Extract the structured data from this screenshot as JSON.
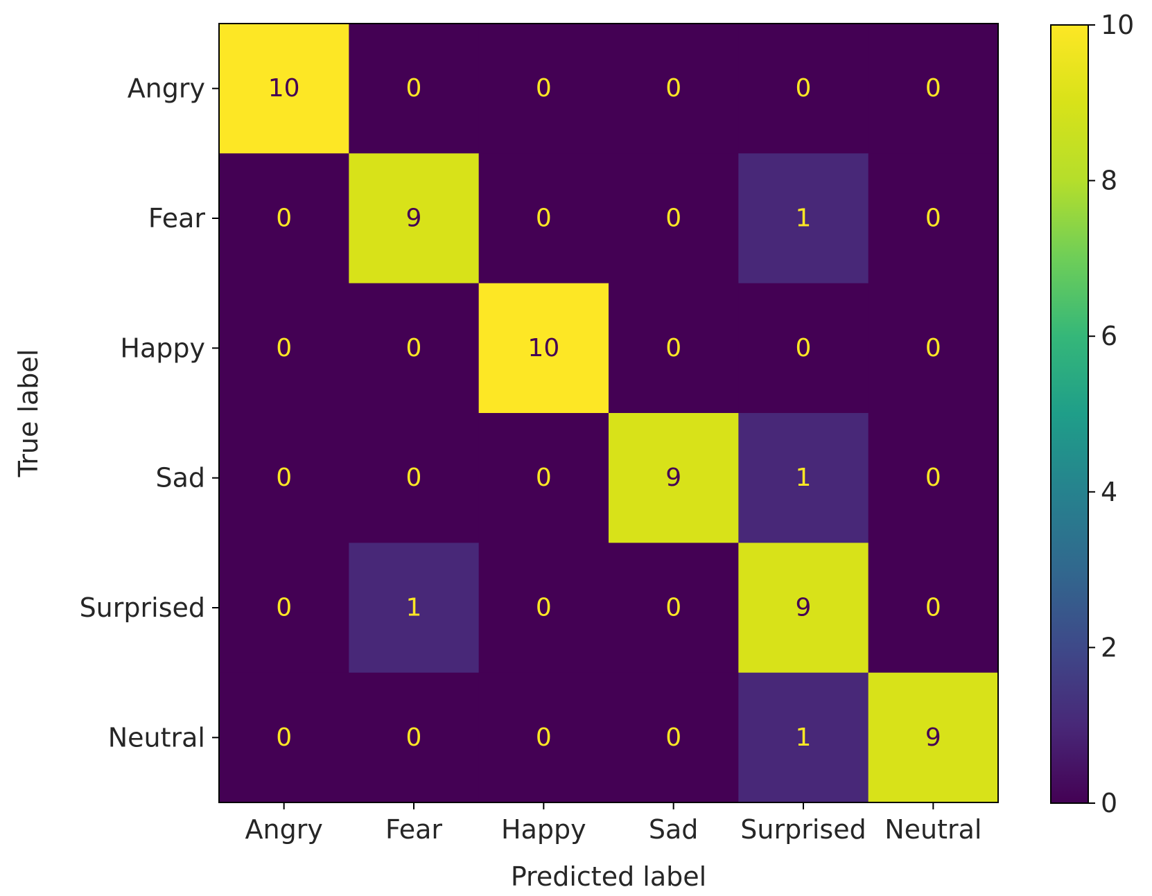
{
  "chart_data": {
    "type": "heatmap",
    "title": "",
    "xlabel": "Predicted label",
    "ylabel": "True label",
    "x_categories": [
      "Angry",
      "Fear",
      "Happy",
      "Sad",
      "Surprised",
      "Neutral"
    ],
    "y_categories": [
      "Angry",
      "Fear",
      "Happy",
      "Sad",
      "Surprised",
      "Neutral"
    ],
    "values": [
      [
        10,
        0,
        0,
        0,
        0,
        0
      ],
      [
        0,
        9,
        0,
        0,
        1,
        0
      ],
      [
        0,
        0,
        10,
        0,
        0,
        0
      ],
      [
        0,
        0,
        0,
        9,
        1,
        0
      ],
      [
        0,
        1,
        0,
        0,
        9,
        0
      ],
      [
        0,
        0,
        0,
        0,
        1,
        9
      ]
    ],
    "colormap": "viridis",
    "colorbar": {
      "range": [
        0,
        10
      ],
      "ticks": [
        "0",
        "2",
        "4",
        "6",
        "8",
        "10"
      ]
    },
    "grid": false
  }
}
